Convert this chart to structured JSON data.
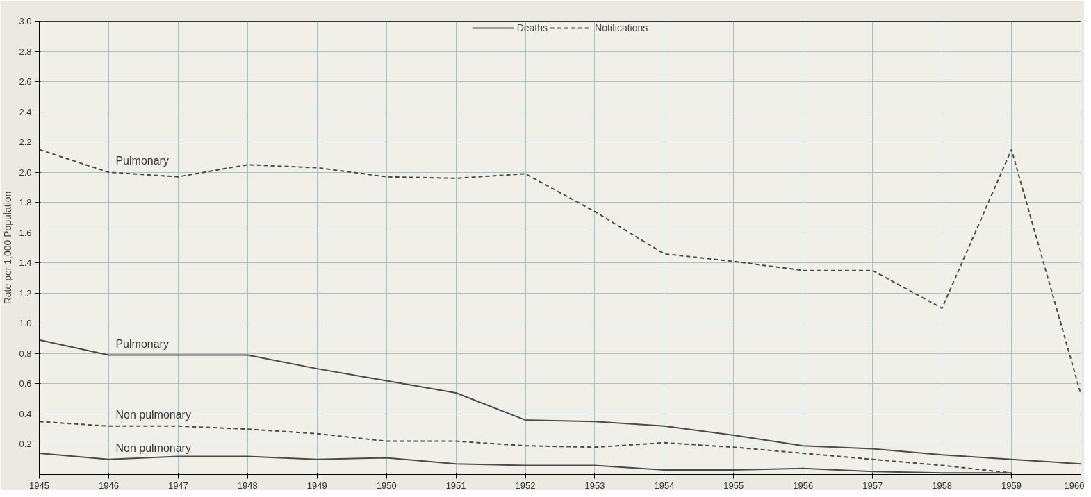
{
  "chart_data": {
    "type": "line",
    "ylabel": "Rate per 1,000 Population",
    "x": [
      1945,
      1946,
      1947,
      1948,
      1949,
      1950,
      1951,
      1952,
      1953,
      1954,
      1955,
      1956,
      1957,
      1958,
      1959,
      1960
    ],
    "series": [
      {
        "name": "Deaths",
        "color": "#4a4a4a",
        "line_style": "solid",
        "values": [
          0.89,
          0.79,
          0.79,
          0.79,
          0.7,
          0.62,
          0.54,
          0.36,
          0.35,
          0.32,
          0.26,
          0.19,
          0.17,
          0.13,
          0.1,
          0.07
        ]
      },
      {
        "name": "Notifications",
        "color": "#4a4a4a",
        "line_style": "dashed",
        "values": [
          2.15,
          2.0,
          1.97,
          2.05,
          2.03,
          1.97,
          1.96,
          1.99,
          1.74,
          1.46,
          1.41,
          1.35,
          1.35,
          1.1,
          2.15,
          0.53
        ]
      },
      {
        "color": "#4a4a4a",
        "line_style": "dashed",
        "values": [
          0.35,
          0.32,
          0.32,
          0.3,
          0.27,
          0.22,
          0.22,
          0.19,
          0.18,
          0.21,
          0.18,
          0.14,
          0.1,
          0.06,
          0.01,
          null
        ]
      },
      {
        "color": "#4a4a4a",
        "line_style": "solid",
        "values": [
          0.14,
          0.1,
          0.12,
          0.12,
          0.1,
          0.11,
          0.07,
          0.06,
          0.06,
          0.03,
          0.03,
          0.04,
          0.02,
          0.01,
          0.01,
          null
        ]
      }
    ],
    "annotations": [
      "Pulmonary",
      "Pulmonary",
      "Non pulmonary",
      "Non pulmonary"
    ],
    "xlim": [
      1945,
      1960
    ],
    "xticks": [
      1945,
      1946,
      1947,
      1948,
      1949,
      1950,
      1951,
      1952,
      1953,
      1954,
      1955,
      1956,
      1957,
      1958,
      1959,
      1960
    ],
    "ylim": [
      0,
      3.0
    ],
    "yticks": [
      0.2,
      0.4,
      0.6,
      0.8,
      {
        "value": 1,
        "label": "1.0"
      },
      1.2,
      1.4,
      1.6,
      1.8,
      {
        "value": 2,
        "label": "2.0"
      },
      2.2,
      2.4,
      2.6,
      2.8,
      {
        "value": 3,
        "label": "3.0"
      }
    ],
    "grid": true,
    "legend": "top"
  }
}
